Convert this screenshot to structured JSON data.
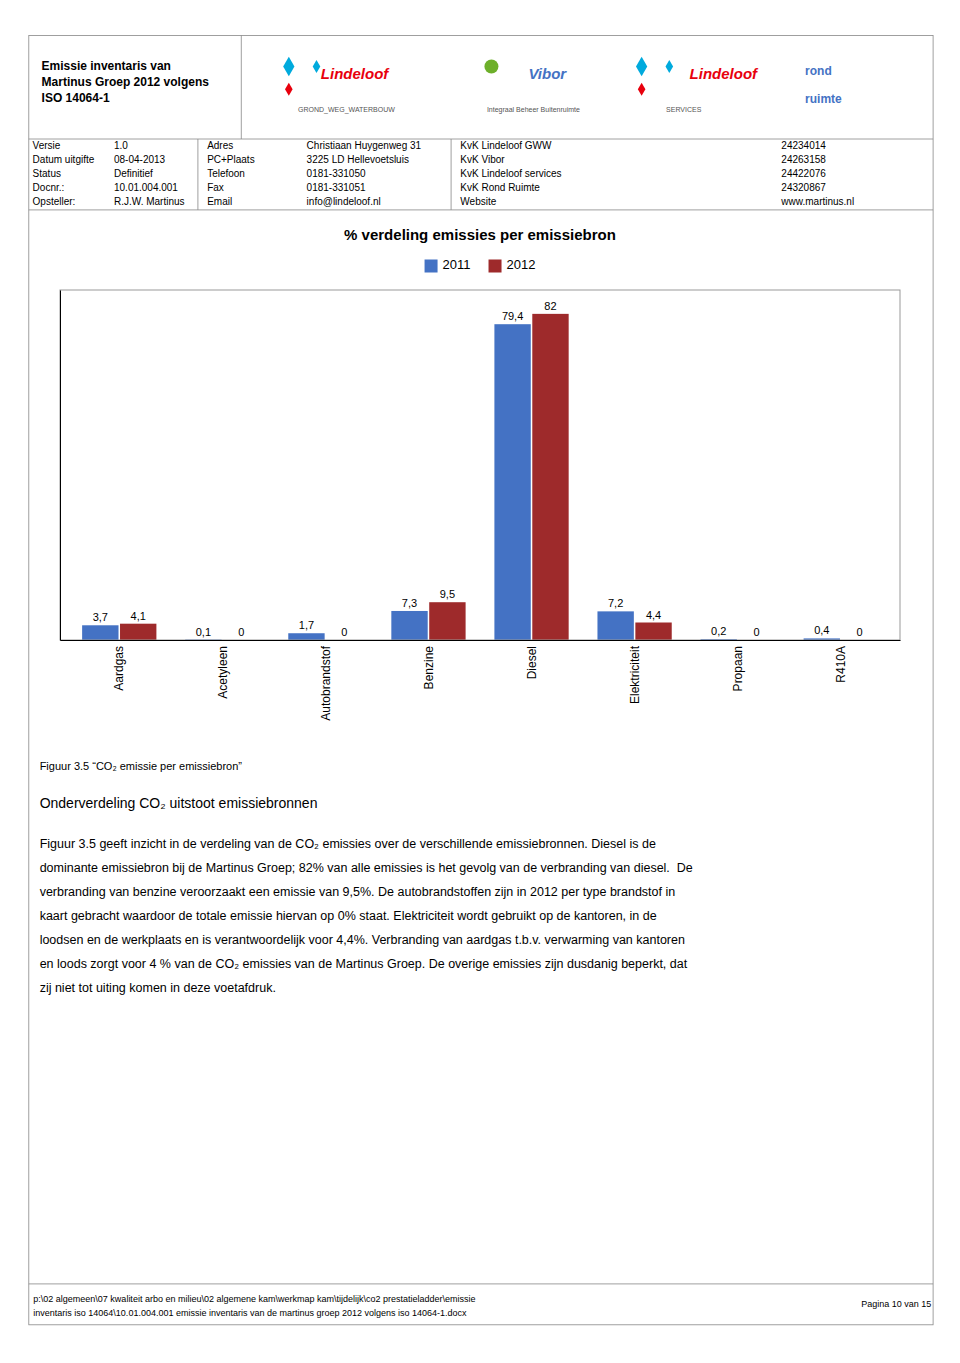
{
  "chart_data": {
    "type": "bar",
    "title": "% verdeling emissies per emissiebron",
    "categories": [
      "Aardgas",
      "Acetyleen",
      "Autobrandstof",
      "Benzine",
      "Diesel",
      "Elektriciteit",
      "Propaan",
      "R410A"
    ],
    "series": [
      {
        "name": "2011",
        "color": "#4472C4",
        "values": [
          3.7,
          0.1,
          1.7,
          7.3,
          79.4,
          7.2,
          0.2,
          0.4
        ],
        "value_labels": [
          "3,7",
          "0,1",
          "1,7",
          "7,3",
          "79,4",
          "7,2",
          "0,2",
          "0,4"
        ]
      },
      {
        "name": "2012",
        "color": "#9E2A2B",
        "values": [
          4.1,
          0.0,
          0.0,
          9.5,
          82.0,
          4.4,
          0.0,
          0.0
        ],
        "value_labels": [
          "4,1",
          "0",
          "0",
          "9,5",
          "82",
          "4,4",
          "0",
          "0"
        ]
      }
    ],
    "ylim": [
      0,
      88
    ],
    "tick_labels": "x",
    "data_labels": true,
    "legend": "top",
    "grid": false
  },
  "page": {
    "background": "#FFFFFF",
    "title_lines": [
      "Emissie inventaris van",
      "Martinus Groep 2012 volgens",
      "ISO 14064-1"
    ],
    "logos": [
      {
        "text": "Lindeloof",
        "subtext": "GROND_WEG_WATERBOUW",
        "color": "#E8000D",
        "icon_colors": [
          "#00AADD",
          "#00AADD",
          "#E8000D"
        ]
      },
      {
        "text": "Vibor",
        "subtext": "Integraal Beheer Buitenruimte",
        "color": "#4472C4",
        "icon_colors": [
          "#6DAF2A"
        ]
      },
      {
        "text": "Lindeloof",
        "subtext": "SERVICES",
        "color": "#E8000D",
        "icon_colors": [
          "#00AADD",
          "#00AADD",
          "#E8000D"
        ]
      },
      {
        "lines": [
          "rond",
          "ruimte"
        ],
        "color": "#4472C4"
      }
    ],
    "header_info": [
      [
        "Versie",
        "1.0",
        "Adres",
        "Christiaan Huygenweg 31",
        "KvK Lindeloof GWW",
        "24234014"
      ],
      [
        "Datum uitgifte",
        "08-04-2013",
        "PC+Plaats",
        "3225 LD Hellevoetsluis",
        "KvK Vibor",
        "24263158"
      ],
      [
        "Status",
        "Definitief",
        "Telefoon",
        "0181-331050",
        "KvK Lindeloof services",
        "24422076"
      ],
      [
        "Docnr.:",
        "10.01.004.001",
        "Fax",
        "0181-331051",
        "KvK Rond Ruimte",
        "24320867"
      ],
      [
        "Opsteller:",
        "R.J.W. Martinus",
        "Email",
        "info@lindeloof.nl",
        "Website",
        "www.martinus.nl"
      ]
    ],
    "caption": "Figuur 3.5 “CO₂ emissie per emissiebron”",
    "heading": "Onderverdeling CO₂ uitstoot emissiebronnen",
    "body_lines": [
      "Figuur 3.5 geeft inzicht in de verdeling van de CO₂ emissies over de verschillende emissiebronnen. Diesel is de",
      "dominante emissiebron bij de Martinus Groep; 82% van alle emissies is het gevolg van de verbranding van diesel.  De",
      "verbranding van benzine veroorzaakt een emissie van 9,5%. De autobrandstoffen zijn in 2012 per type brandstof in",
      "kaart gebracht waardoor de totale emissie hiervan op 0% staat. Elektriciteit wordt gebruikt op de kantoren, in de",
      "loodsen en de werkplaats en is verantwoordelijk voor 4,4%. Verbranding van aardgas t.b.v. verwarming van kantoren",
      "en loods zorgt voor 4 % van de CO₂ emissies van de Martinus Groep. De overige emissies zijn dusdanig beperkt, dat",
      "zij niet tot uiting komen in deze voetafdruk."
    ],
    "footer_left": [
      "p:\\02 algemeen\\07 kwaliteit arbo en milieu\\02 algemene kam\\werkmap kam\\tijdelijk\\co2 prestatieladder\\emissie",
      "inventaris iso 14064\\10.01.004.001 emissie inventaris van de martinus groep 2012 volgens iso 14064-1.docx"
    ],
    "footer_right": "Pagina 10 van 15"
  }
}
